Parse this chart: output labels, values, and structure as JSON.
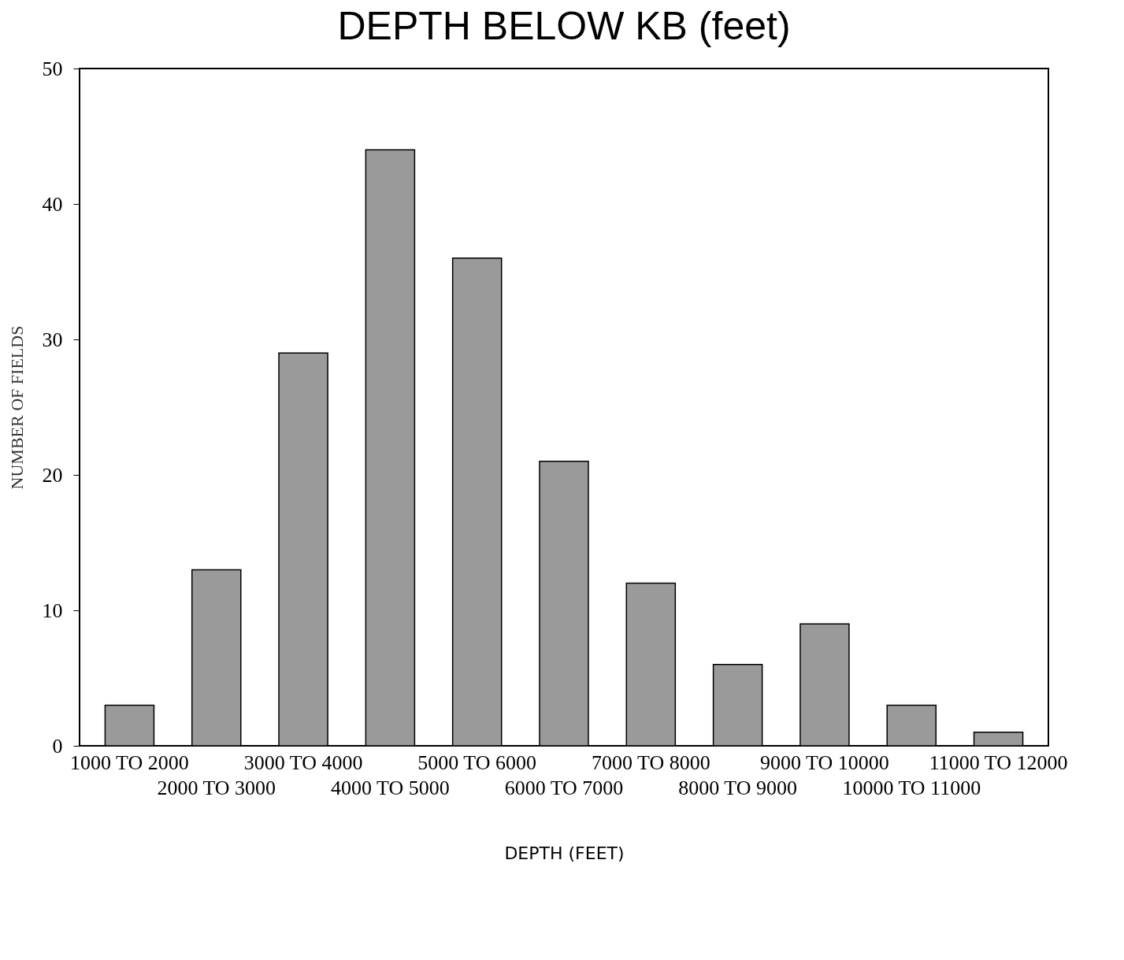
{
  "chart_data": {
    "type": "bar",
    "title": "DEPTH BELOW KB (feet)",
    "xlabel": "DEPTH (FEET)",
    "ylabel": "NUMBER OF FIELDS",
    "categories": [
      "1000 TO 2000",
      "2000 TO 3000",
      "3000 TO 4000",
      "4000 TO 5000",
      "5000 TO 6000",
      "6000 TO 7000",
      "7000 TO 8000",
      "8000 TO 9000",
      "9000 TO 10000",
      "10000 TO 11000",
      "11000 TO 12000"
    ],
    "values": [
      3,
      13,
      29,
      44,
      36,
      21,
      12,
      6,
      9,
      3,
      1
    ],
    "color": "#9a9a9a",
    "ylim": [
      0,
      50
    ],
    "yticks": [
      0,
      10,
      20,
      30,
      40,
      50
    ],
    "grid": false
  }
}
